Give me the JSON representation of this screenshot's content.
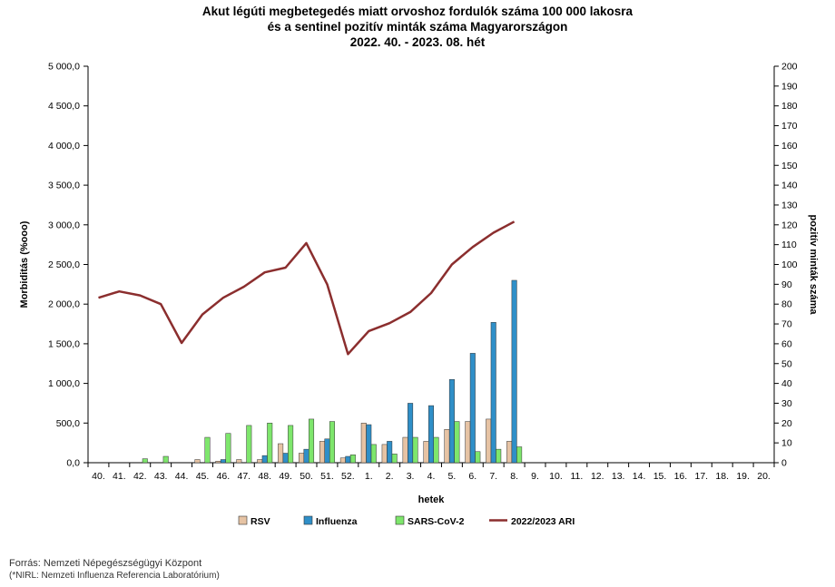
{
  "chart_data": {
    "type": "bar",
    "title": [
      "Akut légúti megbetegedés miatt orvoshoz fordulók száma 100 000 lakosra",
      "és a sentinel pozitív minták száma Magyarországon",
      "2022. 40. - 2023. 08. hét"
    ],
    "xlabel": "hetek",
    "ylabel_left": "Morbiditás (%ooo)",
    "ylabel_right": "pozitív minták száma",
    "ylim_left": [
      0,
      5000
    ],
    "ylim_right": [
      0,
      200
    ],
    "yticks_left": [
      "0,0",
      "500,0",
      "1 000,0",
      "1 500,0",
      "2 000,0",
      "2 500,0",
      "3 000,0",
      "3 500,0",
      "4 000,0",
      "4 500,0",
      "5 000,0"
    ],
    "yticks_right": [
      "0",
      "10",
      "20",
      "30",
      "40",
      "50",
      "60",
      "70",
      "80",
      "90",
      "100",
      "110",
      "120",
      "130",
      "140",
      "150",
      "160",
      "170",
      "180",
      "190",
      "200"
    ],
    "categories": [
      "40.",
      "41.",
      "42.",
      "43.",
      "44.",
      "45.",
      "46.",
      "47.",
      "48.",
      "49.",
      "50.",
      "51.",
      "52.",
      "1.",
      "2.",
      "3.",
      "4.",
      "5.",
      "6.",
      "7.",
      "8.",
      "9.",
      "10.",
      "11.",
      "12.",
      "13.",
      "14.",
      "15.",
      "16.",
      "17.",
      "18.",
      "19.",
      "20."
    ],
    "grid": false,
    "legend_position": "bottom",
    "series": [
      {
        "name": "RSV",
        "kind": "bar",
        "axis": "left",
        "color": "#e6c3a4",
        "values": [
          0,
          0,
          0,
          0,
          0,
          40,
          20,
          40,
          40,
          240,
          120,
          270,
          60,
          500,
          230,
          320,
          270,
          420,
          520,
          550,
          270,
          null,
          null,
          null,
          null,
          null,
          null,
          null,
          null,
          null,
          null,
          null,
          null
        ]
      },
      {
        "name": "Influenza",
        "kind": "bar",
        "axis": "left",
        "color": "#2f8fc8",
        "values": [
          0,
          0,
          0,
          0,
          0,
          0,
          40,
          0,
          90,
          120,
          170,
          300,
          80,
          480,
          270,
          750,
          720,
          1050,
          1380,
          1770,
          2300,
          null,
          null,
          null,
          null,
          null,
          null,
          null,
          null,
          null,
          null,
          null,
          null
        ]
      },
      {
        "name": "SARS-CoV-2",
        "kind": "bar",
        "axis": "left",
        "color": "#7ee66c",
        "values": [
          0,
          0,
          50,
          80,
          0,
          320,
          370,
          470,
          500,
          470,
          550,
          520,
          100,
          230,
          110,
          320,
          320,
          520,
          140,
          170,
          200,
          null,
          null,
          null,
          null,
          null,
          null,
          null,
          null,
          null,
          null,
          null,
          null
        ]
      },
      {
        "name": "2022/2023 ARI",
        "kind": "line",
        "axis": "left",
        "color": "#8b2e2e",
        "values": [
          2080,
          2160,
          2110,
          2000,
          1510,
          1870,
          2080,
          2220,
          2400,
          2460,
          2770,
          2250,
          1370,
          1660,
          1760,
          1900,
          2140,
          2500,
          2720,
          2900,
          3040,
          null,
          null,
          null,
          null,
          null,
          null,
          null,
          null,
          null,
          null,
          null,
          null
        ]
      }
    ]
  },
  "footer": {
    "source": "Forrás: Nemzeti Népegészségügyi Központ",
    "note": "(*NIRL: Nemzeti Influenza Referencia Laboratórium)"
  }
}
